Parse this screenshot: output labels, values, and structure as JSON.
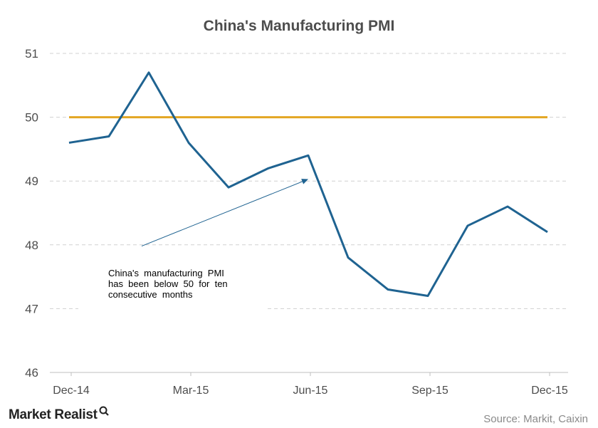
{
  "brand": {
    "name": "Market Realist",
    "icon": "magnifier-q-icon"
  },
  "source": "Source: Markit, Caixin",
  "chart_data": {
    "type": "line",
    "title": "China's  Manufacturing  PMI",
    "xlabel": "",
    "ylabel": "",
    "ylim": [
      46,
      51
    ],
    "yticks": [
      46,
      47,
      48,
      49,
      50,
      51
    ],
    "grid": true,
    "x": [
      "Dec-14",
      "Jan-15",
      "Feb-15",
      "Mar-15",
      "Apr-15",
      "May-15",
      "Jun-15",
      "Jul-15",
      "Aug-15",
      "Sep-15",
      "Oct-15",
      "Nov-15",
      "Dec-15"
    ],
    "xtick_labels": [
      "Dec-14",
      "Mar-15",
      "Jun-15",
      "Sep-15",
      "Dec-15"
    ],
    "series": [
      {
        "values": [
          49.6,
          49.7,
          50.7,
          49.6,
          48.9,
          49.2,
          49.4,
          47.8,
          47.3,
          47.2,
          48.3,
          48.6,
          48.2
        ],
        "color": "#1f6391"
      },
      {
        "values": [
          50,
          50,
          50,
          50,
          50,
          50,
          50,
          50,
          50,
          50,
          50,
          50,
          50
        ],
        "color": "#e3a623"
      }
    ],
    "annotation": {
      "lines": [
        "China's  manufacturing  PMI",
        "has  been  below  50  for  ten",
        "consecutive  months"
      ],
      "arrow_from": [
        "Feb-15",
        47.98
      ],
      "arrow_to": [
        "Jun-15",
        49.03
      ]
    }
  }
}
